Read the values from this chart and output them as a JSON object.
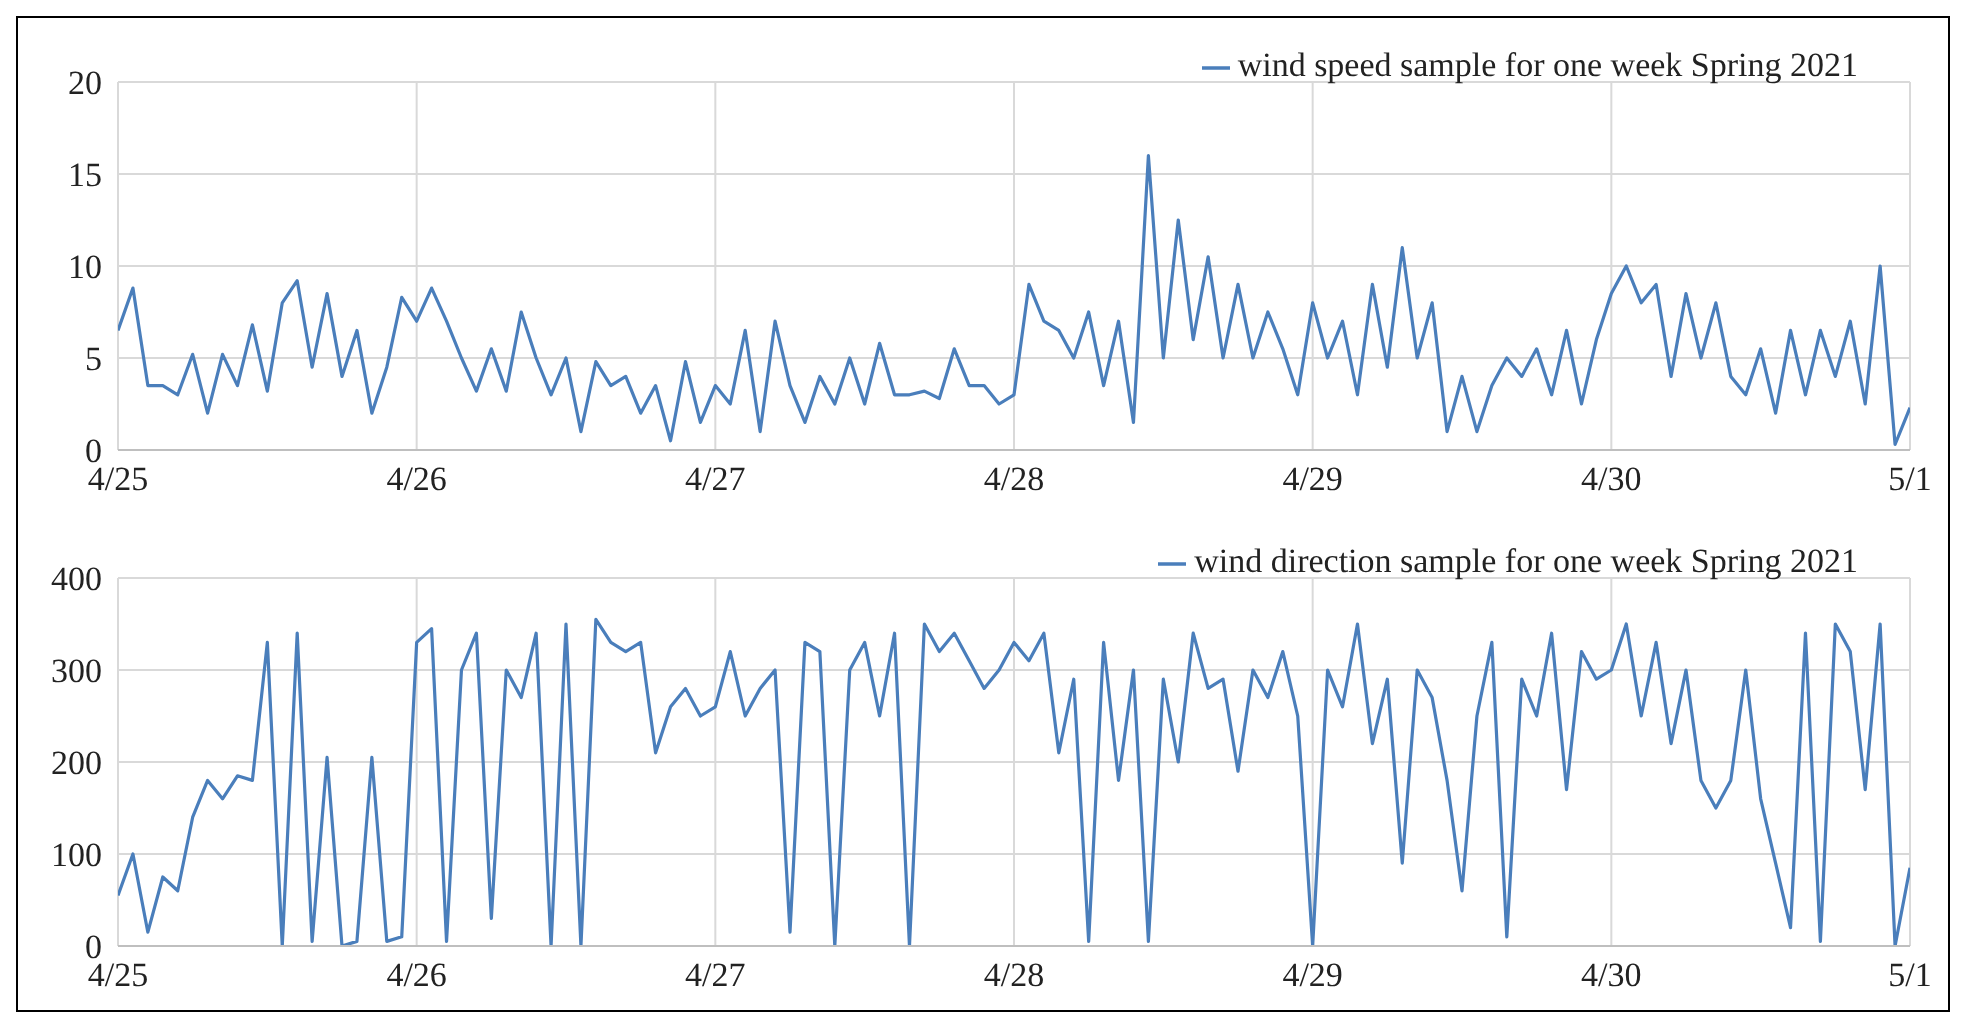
{
  "chart_data": [
    {
      "type": "line",
      "x": [
        "--04-25T00:00",
        "--04-25T01:12",
        "--04-25T02:24",
        "--04-25T03:36",
        "--04-25T04:48",
        "--04-25T06:00",
        "--04-25T07:12",
        "--04-25T08:24",
        "--04-25T09:36",
        "--04-25T10:48",
        "--04-25T12:00",
        "--04-25T13:12",
        "--04-25T14:24",
        "--04-25T15:36",
        "--04-25T16:48",
        "--04-25T18:00",
        "--04-25T19:12",
        "--04-25T20:24",
        "--04-25T21:36",
        "--04-25T22:48",
        "--04-26T00:00",
        "--04-26T01:12",
        "--04-26T02:24",
        "--04-26T03:36",
        "--04-26T04:48",
        "--04-26T06:00",
        "--04-26T07:12",
        "--04-26T08:24",
        "--04-26T09:36",
        "--04-26T10:48",
        "--04-26T12:00",
        "--04-26T13:12",
        "--04-26T14:24",
        "--04-26T15:36",
        "--04-26T16:48",
        "--04-26T18:00",
        "--04-26T19:12",
        "--04-26T20:24",
        "--04-26T21:36",
        "--04-26T22:48",
        "--04-27T00:00",
        "--04-27T01:12",
        "--04-27T02:24",
        "--04-27T03:36",
        "--04-27T04:48",
        "--04-27T06:00",
        "--04-27T07:12",
        "--04-27T08:24",
        "--04-27T09:36",
        "--04-27T10:48",
        "--04-27T12:00",
        "--04-27T13:12",
        "--04-27T14:24",
        "--04-27T15:36",
        "--04-27T16:48",
        "--04-27T18:00",
        "--04-27T19:12",
        "--04-27T20:24",
        "--04-27T21:36",
        "--04-27T22:48",
        "--04-28T00:00",
        "--04-28T01:12",
        "--04-28T02:24",
        "--04-28T03:36",
        "--04-28T04:48",
        "--04-28T06:00",
        "--04-28T07:12",
        "--04-28T08:24",
        "--04-28T09:36",
        "--04-28T10:48",
        "--04-28T12:00",
        "--04-28T13:12",
        "--04-28T14:24",
        "--04-28T15:36",
        "--04-28T16:48",
        "--04-28T18:00",
        "--04-28T19:12",
        "--04-28T20:24",
        "--04-28T21:36",
        "--04-28T22:48",
        "--04-29T00:00",
        "--04-29T01:12",
        "--04-29T02:24",
        "--04-29T03:36",
        "--04-29T04:48",
        "--04-29T06:00",
        "--04-29T07:12",
        "--04-29T08:24",
        "--04-29T09:36",
        "--04-29T10:48",
        "--04-29T12:00",
        "--04-29T13:12",
        "--04-29T14:24",
        "--04-29T15:36",
        "--04-29T16:48",
        "--04-29T18:00",
        "--04-29T19:12",
        "--04-29T20:24",
        "--04-29T21:36",
        "--04-29T22:48",
        "--04-30T00:00",
        "--04-30T01:12",
        "--04-30T02:24",
        "--04-30T03:36",
        "--04-30T04:48",
        "--04-30T06:00",
        "--04-30T07:12",
        "--04-30T08:24",
        "--04-30T09:36",
        "--04-30T10:48",
        "--04-30T12:00",
        "--04-30T13:12",
        "--04-30T14:24",
        "--04-30T15:36",
        "--04-30T16:48",
        "--04-30T18:00",
        "--04-30T19:12",
        "--04-30T20:24",
        "--04-30T21:36",
        "--04-30T22:48",
        "--05-01T00:00"
      ],
      "series": [
        {
          "name": "wind speed sample for one week Spring 2021",
          "color": "#4a7ebb",
          "values": [
            6.5,
            8.8,
            3.5,
            3.5,
            3,
            5.2,
            2,
            5.2,
            3.5,
            6.8,
            3.2,
            8,
            9.2,
            4.5,
            8.5,
            4,
            6.5,
            2,
            4.5,
            8.3,
            7,
            8.8,
            7,
            5,
            3.2,
            5.5,
            3.2,
            7.5,
            5,
            3,
            5,
            1,
            4.8,
            3.5,
            4,
            2,
            3.5,
            0.5,
            4.8,
            1.5,
            3.5,
            2.5,
            6.5,
            1,
            7,
            3.5,
            1.5,
            4,
            2.5,
            5,
            2.5,
            5.8,
            3,
            3,
            3.2,
            2.8,
            5.5,
            3.5,
            3.5,
            2.5,
            3,
            9,
            7,
            6.5,
            5,
            7.5,
            3.5,
            7,
            1.5,
            16,
            5,
            12.5,
            6,
            10.5,
            5,
            9,
            5,
            7.5,
            5.5,
            3,
            8,
            5,
            7,
            3,
            9,
            4.5,
            11,
            5,
            8,
            1,
            4,
            1,
            3.5,
            5,
            4,
            5.5,
            3,
            6.5,
            2.5,
            6,
            8.5,
            10,
            8,
            9,
            4,
            8.5,
            5,
            8,
            4,
            3,
            5.5,
            2,
            6.5,
            3,
            6.5,
            4,
            7,
            2.5,
            10,
            0.3,
            2.3
          ]
        }
      ],
      "xlim": [
        "--04-25",
        "--05-01"
      ],
      "xticks": [
        {
          "value": "--04-25",
          "label": "4/25"
        },
        {
          "value": "--04-26",
          "label": "4/26"
        },
        {
          "value": "--04-27",
          "label": "4/27"
        },
        {
          "value": "--04-28",
          "label": "4/28"
        },
        {
          "value": "--04-29",
          "label": "4/29"
        },
        {
          "value": "--04-30",
          "label": "4/30"
        },
        {
          "value": "--05-01",
          "label": "5/1"
        }
      ],
      "ylim": [
        0,
        20
      ],
      "yticks": [
        0,
        5,
        10,
        15,
        20
      ],
      "grid": true,
      "legend": "top right",
      "marker": "none",
      "line_style": "solid"
    },
    {
      "type": "line",
      "x": [
        "--04-25T00:00",
        "--04-25T01:12",
        "--04-25T02:24",
        "--04-25T03:36",
        "--04-25T04:48",
        "--04-25T06:00",
        "--04-25T07:12",
        "--04-25T08:24",
        "--04-25T09:36",
        "--04-25T10:48",
        "--04-25T12:00",
        "--04-25T13:12",
        "--04-25T14:24",
        "--04-25T15:36",
        "--04-25T16:48",
        "--04-25T18:00",
        "--04-25T19:12",
        "--04-25T20:24",
        "--04-25T21:36",
        "--04-25T22:48",
        "--04-26T00:00",
        "--04-26T01:12",
        "--04-26T02:24",
        "--04-26T03:36",
        "--04-26T04:48",
        "--04-26T06:00",
        "--04-26T07:12",
        "--04-26T08:24",
        "--04-26T09:36",
        "--04-26T10:48",
        "--04-26T12:00",
        "--04-26T13:12",
        "--04-26T14:24",
        "--04-26T15:36",
        "--04-26T16:48",
        "--04-26T18:00",
        "--04-26T19:12",
        "--04-26T20:24",
        "--04-26T21:36",
        "--04-26T22:48",
        "--04-27T00:00",
        "--04-27T01:12",
        "--04-27T02:24",
        "--04-27T03:36",
        "--04-27T04:48",
        "--04-27T06:00",
        "--04-27T07:12",
        "--04-27T08:24",
        "--04-27T09:36",
        "--04-27T10:48",
        "--04-27T12:00",
        "--04-27T13:12",
        "--04-27T14:24",
        "--04-27T15:36",
        "--04-27T16:48",
        "--04-27T18:00",
        "--04-27T19:12",
        "--04-27T20:24",
        "--04-27T21:36",
        "--04-27T22:48",
        "--04-28T00:00",
        "--04-28T01:12",
        "--04-28T02:24",
        "--04-28T03:36",
        "--04-28T04:48",
        "--04-28T06:00",
        "--04-28T07:12",
        "--04-28T08:24",
        "--04-28T09:36",
        "--04-28T10:48",
        "--04-28T12:00",
        "--04-28T13:12",
        "--04-28T14:24",
        "--04-28T15:36",
        "--04-28T16:48",
        "--04-28T18:00",
        "--04-28T19:12",
        "--04-28T20:24",
        "--04-28T21:36",
        "--04-28T22:48",
        "--04-29T00:00",
        "--04-29T01:12",
        "--04-29T02:24",
        "--04-29T03:36",
        "--04-29T04:48",
        "--04-29T06:00",
        "--04-29T07:12",
        "--04-29T08:24",
        "--04-29T09:36",
        "--04-29T10:48",
        "--04-29T12:00",
        "--04-29T13:12",
        "--04-29T14:24",
        "--04-29T15:36",
        "--04-29T16:48",
        "--04-29T18:00",
        "--04-29T19:12",
        "--04-29T20:24",
        "--04-29T21:36",
        "--04-29T22:48",
        "--04-30T00:00",
        "--04-30T01:12",
        "--04-30T02:24",
        "--04-30T03:36",
        "--04-30T04:48",
        "--04-30T06:00",
        "--04-30T07:12",
        "--04-30T08:24",
        "--04-30T09:36",
        "--04-30T10:48",
        "--04-30T12:00",
        "--04-30T13:12",
        "--04-30T14:24",
        "--04-30T15:36",
        "--04-30T16:48",
        "--04-30T18:00",
        "--04-30T19:12",
        "--04-30T20:24",
        "--04-30T21:36",
        "--04-30T22:48",
        "--05-01T00:00"
      ],
      "series": [
        {
          "name": "wind direction sample for one week Spring 2021",
          "color": "#4a7ebb",
          "values": [
            55,
            100,
            15,
            75,
            60,
            140,
            180,
            160,
            185,
            180,
            330,
            0,
            340,
            5,
            205,
            0,
            5,
            205,
            5,
            10,
            330,
            345,
            5,
            300,
            340,
            30,
            300,
            270,
            340,
            0,
            350,
            0,
            355,
            330,
            320,
            330,
            210,
            260,
            280,
            250,
            260,
            320,
            250,
            280,
            300,
            15,
            330,
            320,
            0,
            300,
            330,
            250,
            340,
            0,
            350,
            320,
            340,
            310,
            280,
            300,
            330,
            310,
            340,
            210,
            290,
            5,
            330,
            180,
            300,
            5,
            290,
            200,
            340,
            280,
            290,
            190,
            300,
            270,
            320,
            250,
            0,
            300,
            260,
            350,
            220,
            290,
            90,
            300,
            270,
            180,
            60,
            250,
            330,
            10,
            290,
            250,
            340,
            170,
            320,
            290,
            300,
            350,
            250,
            330,
            220,
            300,
            180,
            150,
            180,
            300,
            160,
            90,
            20,
            340,
            5,
            350,
            320,
            170,
            350,
            0,
            85
          ]
        }
      ],
      "xlim": [
        "--04-25",
        "--05-01"
      ],
      "xticks": [
        {
          "value": "--04-25",
          "label": "4/25"
        },
        {
          "value": "--04-26",
          "label": "4/26"
        },
        {
          "value": "--04-27",
          "label": "4/27"
        },
        {
          "value": "--04-28",
          "label": "4/28"
        },
        {
          "value": "--04-29",
          "label": "4/29"
        },
        {
          "value": "--04-30",
          "label": "4/30"
        },
        {
          "value": "--05-01",
          "label": "5/1"
        }
      ],
      "ylim": [
        0,
        400
      ],
      "yticks": [
        0,
        100,
        200,
        300,
        400
      ],
      "grid": true,
      "legend": "top right",
      "marker": "none",
      "line_style": "solid"
    }
  ]
}
